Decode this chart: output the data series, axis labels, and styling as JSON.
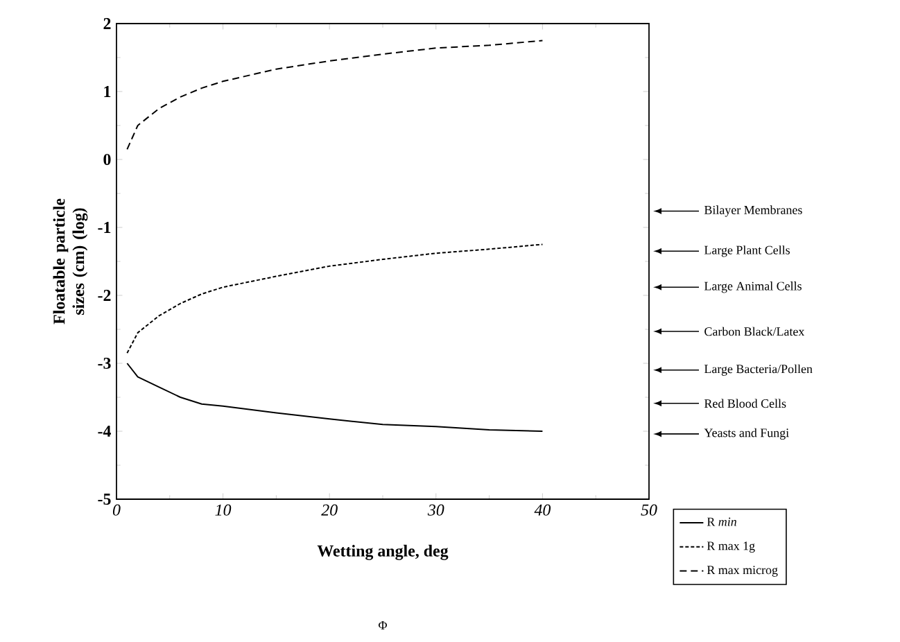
{
  "chart_data": {
    "type": "line",
    "xlabel": "Wetting angle, deg",
    "ylabel": "Floatable particle sizes (cm) (log)",
    "xlim": [
      0,
      50
    ],
    "ylim": [
      -5,
      2
    ],
    "xticks": [
      0,
      10,
      20,
      30,
      40,
      50
    ],
    "yticks": [
      -5,
      -4,
      -3,
      -2,
      -1,
      0,
      1,
      2
    ],
    "grid": false,
    "legend": "bottom right",
    "marker": "none",
    "series": [
      {
        "name": "R *min*",
        "color": "#000000",
        "line_style": "solid",
        "x": [
          1,
          2,
          4,
          6,
          8,
          10,
          15,
          20,
          25,
          30,
          35,
          40
        ],
        "values": [
          -3.0,
          -3.2,
          -3.35,
          -3.5,
          -3.6,
          -3.63,
          -3.73,
          -3.82,
          -3.9,
          -3.93,
          -3.98,
          -4.0
        ]
      },
      {
        "name": "R max 1g",
        "color": "#000000",
        "line_style": "dotted",
        "x": [
          1,
          2,
          4,
          6,
          8,
          10,
          15,
          20,
          25,
          30,
          35,
          40
        ],
        "values": [
          -2.85,
          -2.55,
          -2.3,
          -2.12,
          -1.98,
          -1.88,
          -1.72,
          -1.57,
          -1.47,
          -1.38,
          -1.32,
          -1.25
        ]
      },
      {
        "name": "R max microg",
        "color": "#000000",
        "line_style": "dashed",
        "x": [
          1,
          2,
          4,
          6,
          8,
          10,
          15,
          20,
          25,
          30,
          35,
          40
        ],
        "values": [
          0.15,
          0.5,
          0.75,
          0.92,
          1.05,
          1.15,
          1.33,
          1.45,
          1.55,
          1.64,
          1.68,
          1.75
        ]
      }
    ],
    "ref_lines": [
      {
        "axis": "y",
        "value": -0.76,
        "label": "Bilayer Membranes"
      },
      {
        "axis": "y",
        "value": -1.35,
        "label": "Large Plant Cells"
      },
      {
        "axis": "y",
        "value": -1.88,
        "label": "Large Animal Cells"
      },
      {
        "axis": "y",
        "value": -2.53,
        "label": "Carbon Black/Latex"
      },
      {
        "axis": "y",
        "value": -3.1,
        "label": "Large Bacteria/Pollen"
      },
      {
        "axis": "y",
        "value": -3.59,
        "label": "Red Blood Cells"
      },
      {
        "axis": "y",
        "value": -4.04,
        "label": "Yeasts and Fungi"
      }
    ],
    "annotations": [
      "Φ"
    ]
  }
}
